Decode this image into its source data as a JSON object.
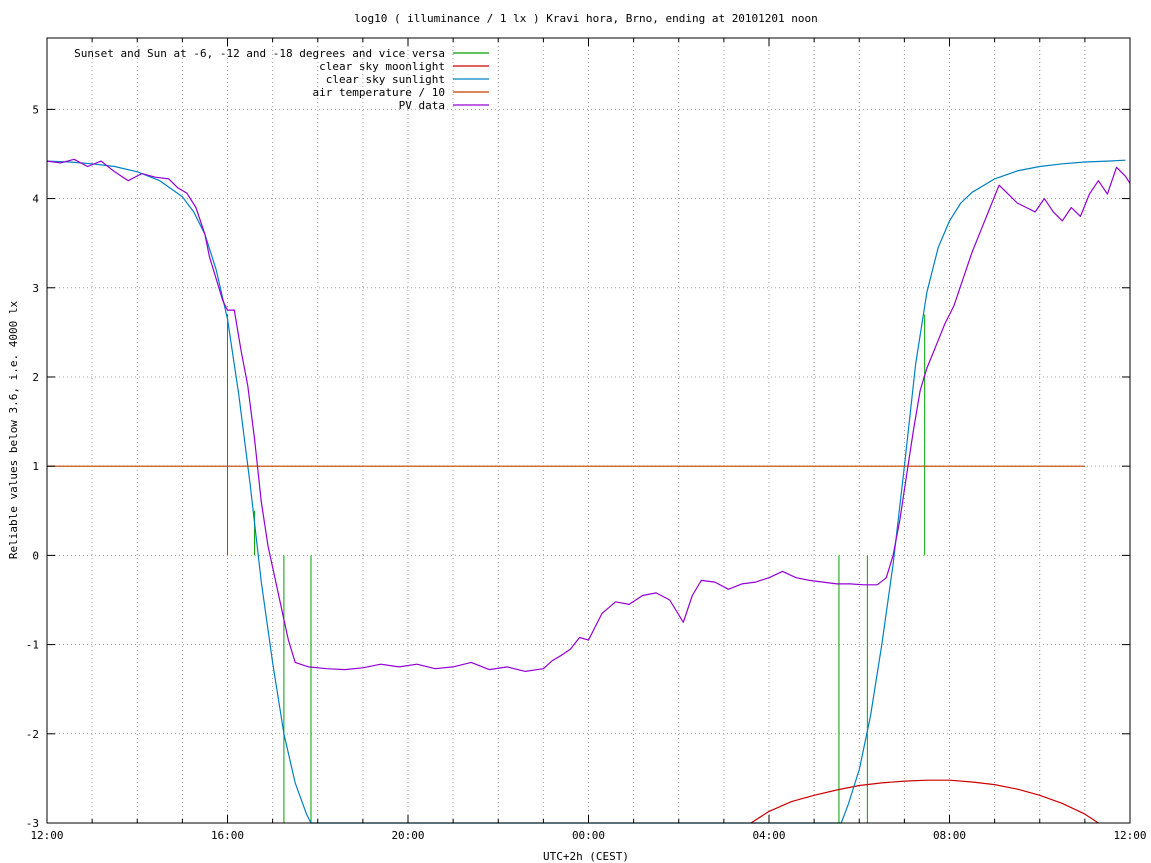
{
  "chart_data": {
    "type": "line",
    "title": "log10 ( illuminance / 1 lx ) Kravi hora, Brno, ending at 20101201 noon",
    "xlabel": "UTC+2h (CEST)",
    "ylabel": "Reliable values below 3.6, i.e. 4000 lx",
    "xlim": [
      12,
      36
    ],
    "ylim": [
      -3,
      5.8
    ],
    "x_ticks": [
      {
        "value": 12,
        "label": "12:00"
      },
      {
        "value": 16,
        "label": "16:00"
      },
      {
        "value": 20,
        "label": "20:00"
      },
      {
        "value": 24,
        "label": "00:00"
      },
      {
        "value": 28,
        "label": "04:00"
      },
      {
        "value": 32,
        "label": "08:00"
      },
      {
        "value": 36,
        "label": "12:00"
      }
    ],
    "y_ticks": [
      {
        "value": 5,
        "label": "5"
      },
      {
        "value": 4,
        "label": "4"
      },
      {
        "value": 3,
        "label": "3"
      },
      {
        "value": 2,
        "label": "2"
      },
      {
        "value": 1,
        "label": "1"
      },
      {
        "value": 0,
        "label": "0"
      },
      {
        "value": -1,
        "label": "-1"
      },
      {
        "value": -2,
        "label": "-2"
      },
      {
        "value": -3,
        "label": "-3"
      }
    ],
    "grid": true,
    "legend_position": "top-left",
    "series": [
      {
        "name": "Sunset and Sun at -6, -12 and -18 degrees and vice versa",
        "color": "#00a000",
        "kind": "vlines",
        "lines": [
          {
            "x": 16.0,
            "y0": 0,
            "y1": 2.7
          },
          {
            "x": 16.6,
            "y0": 0,
            "y1": 0.5
          },
          {
            "x": 17.25,
            "y0": -3,
            "y1": 0
          },
          {
            "x": 17.85,
            "y0": -3,
            "y1": 0
          },
          {
            "x": 29.55,
            "y0": -3,
            "y1": 0
          },
          {
            "x": 30.18,
            "y0": -3,
            "y1": 0
          },
          {
            "x": 31.45,
            "y0": 0,
            "y1": 2.7
          }
        ]
      },
      {
        "name": "clear sky moonlight",
        "color": "#cc0000",
        "kind": "line",
        "x": [
          27.6,
          28.0,
          28.5,
          29.0,
          29.5,
          30.0,
          30.5,
          31.0,
          31.5,
          32.0,
          32.5,
          33.0,
          33.5,
          34.0,
          34.5,
          35.0,
          35.3
        ],
        "y": [
          -3.0,
          -2.87,
          -2.76,
          -2.69,
          -2.63,
          -2.58,
          -2.55,
          -2.53,
          -2.52,
          -2.52,
          -2.54,
          -2.57,
          -2.62,
          -2.69,
          -2.78,
          -2.9,
          -3.0
        ]
      },
      {
        "name": "clear sky sunlight",
        "color": "#0080c0",
        "kind": "line",
        "x": [
          12.0,
          12.5,
          13.0,
          13.5,
          14.0,
          14.5,
          15.0,
          15.25,
          15.5,
          15.75,
          16.0,
          16.25,
          16.5,
          16.75,
          17.0,
          17.25,
          17.5,
          17.75,
          17.85,
          29.6,
          29.75,
          30.0,
          30.25,
          30.5,
          30.75,
          31.0,
          31.25,
          31.5,
          31.75,
          32.0,
          32.25,
          32.5,
          33.0,
          33.5,
          34.0,
          34.5,
          35.0,
          35.5,
          35.9
        ],
        "y": [
          4.42,
          4.41,
          4.39,
          4.36,
          4.3,
          4.2,
          4.02,
          3.85,
          3.6,
          3.2,
          2.65,
          1.8,
          0.8,
          -0.3,
          -1.2,
          -2.0,
          -2.55,
          -2.9,
          -3.0,
          -3.0,
          -2.8,
          -2.4,
          -1.8,
          -1.0,
          -0.1,
          1.0,
          2.15,
          2.95,
          3.45,
          3.75,
          3.95,
          4.07,
          4.22,
          4.31,
          4.36,
          4.39,
          4.41,
          4.42,
          4.43
        ]
      },
      {
        "name": "air temperature / 10",
        "color": "#c04000",
        "kind": "line",
        "x": [
          12.0,
          35.0
        ],
        "y": [
          1.0,
          1.0
        ]
      },
      {
        "name": "PV data",
        "color": "#9400d3",
        "kind": "line",
        "x": [
          12.0,
          12.3,
          12.6,
          12.9,
          13.2,
          13.5,
          13.8,
          14.1,
          14.4,
          14.7,
          14.9,
          15.1,
          15.3,
          15.5,
          15.6,
          15.75,
          15.9,
          16.0,
          16.15,
          16.3,
          16.45,
          16.6,
          16.75,
          16.9,
          17.05,
          17.2,
          17.35,
          17.5,
          17.8,
          18.2,
          18.6,
          19.0,
          19.4,
          19.8,
          20.2,
          20.6,
          21.0,
          21.4,
          21.8,
          22.2,
          22.6,
          23.0,
          23.2,
          23.4,
          23.6,
          23.8,
          24.0,
          24.3,
          24.6,
          24.9,
          25.2,
          25.5,
          25.8,
          26.1,
          26.3,
          26.5,
          26.8,
          27.1,
          27.4,
          27.7,
          28.0,
          28.3,
          28.6,
          28.9,
          29.2,
          29.5,
          29.8,
          30.1,
          30.4,
          30.6,
          30.75,
          30.9,
          31.05,
          31.2,
          31.35,
          31.5,
          31.7,
          31.9,
          32.1,
          32.3,
          32.5,
          32.7,
          32.9,
          33.1,
          33.3,
          33.5,
          33.7,
          33.9,
          34.1,
          34.3,
          34.5,
          34.7,
          34.9,
          35.1,
          35.3,
          35.5,
          35.7,
          35.9,
          36.0
        ],
        "y": [
          4.42,
          4.4,
          4.44,
          4.36,
          4.42,
          4.3,
          4.2,
          4.28,
          4.24,
          4.22,
          4.12,
          4.06,
          3.9,
          3.6,
          3.35,
          3.1,
          2.85,
          2.75,
          2.75,
          2.3,
          1.9,
          1.3,
          0.6,
          0.1,
          -0.25,
          -0.6,
          -0.95,
          -1.2,
          -1.25,
          -1.27,
          -1.28,
          -1.26,
          -1.22,
          -1.25,
          -1.22,
          -1.27,
          -1.25,
          -1.2,
          -1.28,
          -1.25,
          -1.3,
          -1.27,
          -1.18,
          -1.12,
          -1.05,
          -0.92,
          -0.95,
          -0.65,
          -0.52,
          -0.55,
          -0.45,
          -0.42,
          -0.5,
          -0.75,
          -0.45,
          -0.28,
          -0.3,
          -0.38,
          -0.32,
          -0.3,
          -0.25,
          -0.18,
          -0.25,
          -0.28,
          -0.3,
          -0.32,
          -0.32,
          -0.33,
          -0.33,
          -0.25,
          0.0,
          0.4,
          0.9,
          1.4,
          1.85,
          2.1,
          2.35,
          2.6,
          2.8,
          3.1,
          3.4,
          3.65,
          3.9,
          4.15,
          4.05,
          3.95,
          3.9,
          3.85,
          4.0,
          3.85,
          3.75,
          3.9,
          3.8,
          4.05,
          4.2,
          4.05,
          4.35,
          4.25,
          4.17
        ]
      }
    ]
  }
}
